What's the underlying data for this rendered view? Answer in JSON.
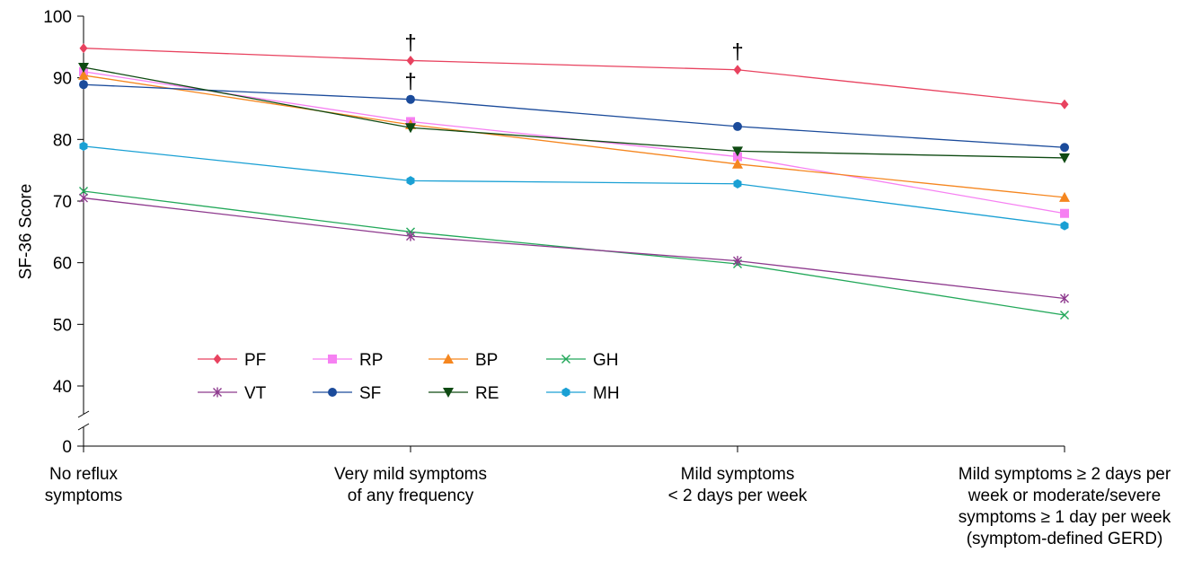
{
  "chart_data": {
    "type": "line",
    "title": "",
    "xlabel": "",
    "ylabel": "SF-36 Score",
    "yticks": [
      0,
      40,
      50,
      60,
      70,
      80,
      90,
      100
    ],
    "ylim": [
      0,
      100
    ],
    "axis_break": "between 0 and 40",
    "grid": false,
    "legend_placement": "bottom-left, inside plot",
    "categories": [
      [
        "No reflux",
        "symptoms"
      ],
      [
        "Very mild symptoms",
        "of any frequency"
      ],
      [
        "Mild symptoms",
        "< 2 days per week"
      ],
      [
        "Mild symptoms ≥ 2 days per",
        "week or moderate/severe",
        "symptoms ≥ 1 day per week",
        "(symptom-defined GERD)"
      ]
    ],
    "series": [
      {
        "name": "PF",
        "color": "#e8425f",
        "marker": "diamond",
        "values": [
          94.8,
          92.8,
          91.3,
          85.7
        ]
      },
      {
        "name": "RP",
        "color": "#f680f2",
        "marker": "square",
        "values": [
          91.0,
          82.9,
          77.2,
          68.0
        ]
      },
      {
        "name": "BP",
        "color": "#f5861f",
        "marker": "triangle-up",
        "values": [
          90.4,
          82.4,
          76.0,
          70.6
        ]
      },
      {
        "name": "GH",
        "color": "#23a85a",
        "marker": "x",
        "values": [
          71.6,
          65.0,
          59.8,
          51.5
        ]
      },
      {
        "name": "VT",
        "color": "#8e3a8e",
        "marker": "asterisk",
        "values": [
          70.5,
          64.3,
          60.3,
          54.2
        ]
      },
      {
        "name": "SF",
        "color": "#1b4b9b",
        "marker": "circle",
        "values": [
          88.9,
          86.5,
          82.1,
          78.7
        ]
      },
      {
        "name": "RE",
        "color": "#0e4a12",
        "marker": "triangle-down",
        "values": [
          91.7,
          81.9,
          78.1,
          77.0
        ]
      },
      {
        "name": "MH",
        "color": "#1aa0d4",
        "marker": "hexagon",
        "values": [
          78.9,
          73.3,
          72.8,
          66.0
        ]
      }
    ],
    "annotations": [
      {
        "text": "†",
        "category_index": 1,
        "series": "PF"
      },
      {
        "text": "†",
        "category_index": 1,
        "series": "SF"
      },
      {
        "text": "†",
        "category_index": 2,
        "series": "PF"
      }
    ]
  }
}
